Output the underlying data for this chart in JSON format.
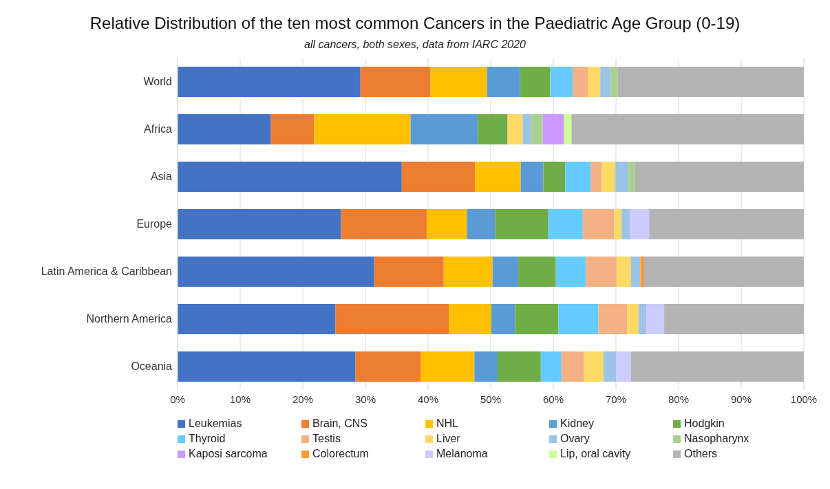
{
  "chart_data": {
    "type": "bar",
    "orientation": "horizontal",
    "stacked": true,
    "title": "Relative Distribution of the ten most common Cancers in the Paediatric Age Group (0-19)",
    "subtitle": "all cancers, both sexes, data from IARC 2020",
    "categories": [
      "World",
      "Africa",
      "Asia",
      "Europe",
      "Latin America & Caribbean",
      "Northern America",
      "Oceania"
    ],
    "series": [
      {
        "name": "Leukemias",
        "color": "#4472c4",
        "values": [
          29.2,
          14.9,
          35.8,
          26.1,
          31.4,
          25.2,
          28.4
        ]
      },
      {
        "name": "Brain, CNS",
        "color": "#ed7d31",
        "values": [
          11.2,
          6.9,
          11.7,
          13.7,
          11.1,
          18.1,
          10.4
        ]
      },
      {
        "name": "NHL",
        "color": "#ffc000",
        "values": [
          9.0,
          15.4,
          7.3,
          6.4,
          7.8,
          6.8,
          8.6
        ]
      },
      {
        "name": "Kidney",
        "color": "#5b9bd5",
        "values": [
          5.3,
          10.7,
          3.6,
          4.5,
          4.1,
          3.8,
          3.7
        ]
      },
      {
        "name": "Hodgkin",
        "color": "#70ad47",
        "values": [
          4.8,
          4.8,
          3.5,
          8.5,
          6.0,
          6.9,
          6.9
        ]
      },
      {
        "name": "Thyroid",
        "color": "#66ccff",
        "values": [
          3.6,
          null,
          4.1,
          5.5,
          4.8,
          6.4,
          3.3
        ]
      },
      {
        "name": "Testis",
        "color": "#f4b183",
        "values": [
          2.4,
          null,
          1.7,
          5.0,
          4.9,
          4.6,
          3.6
        ]
      },
      {
        "name": "Liver",
        "color": "#ffd966",
        "values": [
          2.0,
          2.4,
          2.2,
          1.2,
          2.3,
          1.8,
          3.1
        ]
      },
      {
        "name": "Ovary",
        "color": "#9dc3e6",
        "values": [
          1.7,
          1.4,
          2.1,
          1.3,
          1.5,
          1.3,
          2.0
        ]
      },
      {
        "name": "Nasopharynx",
        "color": "#a9d18e",
        "values": [
          1.1,
          1.8,
          1.0,
          null,
          null,
          null,
          null
        ]
      },
      {
        "name": "Kaposi sarcoma",
        "color": "#cc99ff",
        "values": [
          null,
          3.4,
          null,
          null,
          null,
          null,
          null
        ]
      },
      {
        "name": "Colorectum",
        "color": "#ff9933",
        "values": [
          null,
          null,
          null,
          null,
          0.6,
          null,
          null
        ]
      },
      {
        "name": "Melanoma",
        "color": "#ccccff",
        "values": [
          null,
          null,
          null,
          3.1,
          null,
          2.8,
          2.4
        ]
      },
      {
        "name": "Lip, oral cavity",
        "color": "#ccff99",
        "values": [
          null,
          1.2,
          null,
          null,
          null,
          null,
          null
        ]
      },
      {
        "name": "Others",
        "color": "#b4b4b4",
        "values": [
          29.7,
          37.1,
          27.0,
          24.7,
          25.5,
          22.3,
          27.6
        ]
      }
    ],
    "xlim": [
      0,
      100
    ],
    "xticks": [
      {
        "value": 0,
        "label": "0%"
      },
      {
        "value": 10,
        "label": "10%"
      },
      {
        "value": 20,
        "label": "20%"
      },
      {
        "value": 30,
        "label": "30%"
      },
      {
        "value": 40,
        "label": "40%"
      },
      {
        "value": 50,
        "label": "50%"
      },
      {
        "value": 60,
        "label": "60%"
      },
      {
        "value": 70,
        "label": "70%"
      },
      {
        "value": 80,
        "label": "80%"
      },
      {
        "value": 90,
        "label": "90%"
      },
      {
        "value": 100,
        "label": "100%"
      }
    ],
    "grid": "x",
    "legend": "bottom"
  }
}
